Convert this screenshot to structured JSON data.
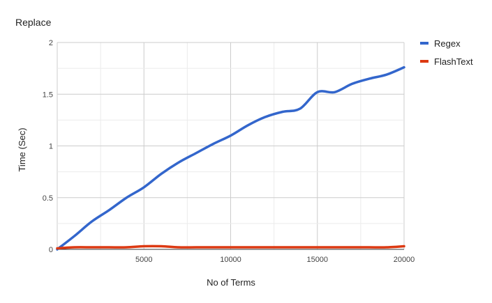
{
  "chart_data": {
    "type": "line",
    "title": "Replace",
    "xlabel": "No of Terms",
    "ylabel": "Time (Sec)",
    "xlim": [
      0,
      20000
    ],
    "ylim": [
      0,
      2
    ],
    "x_ticks": [
      "5000",
      "10000",
      "15000",
      "20000"
    ],
    "y_ticks": [
      "0",
      "0.5",
      "1",
      "1.5",
      "2"
    ],
    "grid": true,
    "legend_position": "right",
    "series": [
      {
        "name": "Regex",
        "color": "#3366cc",
        "x": [
          0,
          1000,
          2000,
          3000,
          4000,
          5000,
          6000,
          7000,
          8000,
          9000,
          10000,
          11000,
          12000,
          13000,
          14000,
          15000,
          16000,
          17000,
          18000,
          19000,
          20000
        ],
        "y": [
          0.0,
          0.13,
          0.27,
          0.38,
          0.5,
          0.6,
          0.73,
          0.84,
          0.93,
          1.02,
          1.1,
          1.2,
          1.28,
          1.33,
          1.36,
          1.52,
          1.52,
          1.6,
          1.65,
          1.69,
          1.76
        ]
      },
      {
        "name": "FlashText",
        "color": "#dc3912",
        "x": [
          0,
          1000,
          2000,
          3000,
          4000,
          5000,
          6000,
          7000,
          8000,
          9000,
          10000,
          11000,
          12000,
          13000,
          14000,
          15000,
          16000,
          17000,
          18000,
          19000,
          20000
        ],
        "y": [
          0.01,
          0.02,
          0.02,
          0.02,
          0.02,
          0.03,
          0.03,
          0.02,
          0.02,
          0.02,
          0.02,
          0.02,
          0.02,
          0.02,
          0.02,
          0.02,
          0.02,
          0.02,
          0.02,
          0.02,
          0.03
        ]
      }
    ]
  }
}
